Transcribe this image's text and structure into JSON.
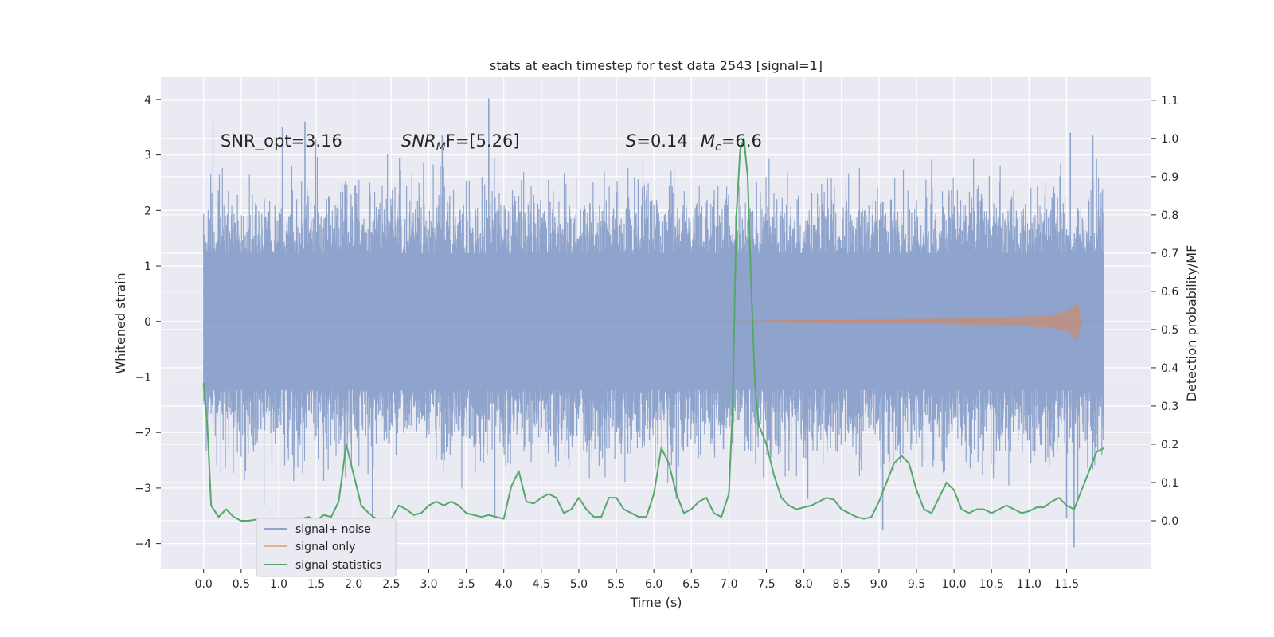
{
  "chart_data": {
    "type": "line",
    "title": "stats at each timestep for test data 2543 [signal=1]",
    "xlabel": "Time (s)",
    "ylabel": "Whitened strain",
    "y2label": "Detection probability/MF",
    "xlim": [
      -0.57,
      12.63
    ],
    "ylim": [
      -4.45,
      4.4
    ],
    "y2lim": [
      -0.125,
      1.16
    ],
    "x_ticks": [
      "0.0",
      "0.5",
      "1.0",
      "1.5",
      "2.0",
      "2.5",
      "3.0",
      "3.5",
      "4.0",
      "4.5",
      "5.0",
      "5.5",
      "6.0",
      "6.5",
      "7.0",
      "7.5",
      "8.0",
      "8.5",
      "9.0",
      "9.5",
      "10.0",
      "10.5",
      "11.0",
      "11.5"
    ],
    "y_ticks": [
      "4",
      "3",
      "2",
      "1",
      "0",
      "−1",
      "−2",
      "−3",
      "−4"
    ],
    "y2_ticks": [
      "1.1",
      "1.0",
      "0.9",
      "0.8",
      "0.7",
      "0.6",
      "0.5",
      "0.4",
      "0.3",
      "0.2",
      "0.1",
      "0.0"
    ],
    "grid": true,
    "legend_position": "lower-left",
    "annotations": {
      "snr_opt": "SNR_opt=3.16",
      "snr_mf_base": "SNR",
      "snr_mf_sub": "M",
      "snr_mf_rest": "F=[5.26]",
      "s_var": "S",
      "s_val": "=0.14",
      "mc_base": "M",
      "mc_sub": "c",
      "mc_val": "=6.6"
    },
    "series": [
      {
        "name": "signal+ noise",
        "color": "#8fa4cc",
        "description": "whitened strain noise band",
        "x_range": [
          0.0,
          12.0
        ],
        "typical_range": [
          -1.9,
          1.9
        ],
        "max": 4.02,
        "min": -4.07
      },
      {
        "name": "signal only",
        "color": "#dd8452",
        "x": [
          0.0,
          6.0,
          7.0,
          8.0,
          9.0,
          10.0,
          10.5,
          11.0,
          11.3,
          11.5,
          11.6,
          11.65,
          11.7
        ],
        "envelope": [
          0.0,
          0.005,
          0.01,
          0.03,
          0.04,
          0.05,
          0.07,
          0.09,
          0.12,
          0.18,
          0.28,
          0.35,
          0.0
        ]
      },
      {
        "name": "signal statistics",
        "color": "#55a868",
        "x": [
          0.0,
          0.05,
          0.1,
          0.2,
          0.3,
          0.4,
          0.5,
          0.6,
          0.7,
          0.8,
          0.9,
          1.0,
          1.1,
          1.2,
          1.3,
          1.4,
          1.5,
          1.6,
          1.7,
          1.8,
          1.9,
          2.0,
          2.1,
          2.2,
          2.3,
          2.4,
          2.5,
          2.6,
          2.7,
          2.8,
          2.9,
          3.0,
          3.1,
          3.2,
          3.3,
          3.4,
          3.5,
          3.6,
          3.7,
          3.8,
          3.9,
          4.0,
          4.1,
          4.2,
          4.3,
          4.4,
          4.5,
          4.6,
          4.7,
          4.8,
          4.9,
          5.0,
          5.1,
          5.2,
          5.3,
          5.4,
          5.5,
          5.6,
          5.7,
          5.8,
          5.9,
          6.0,
          6.1,
          6.2,
          6.3,
          6.4,
          6.5,
          6.6,
          6.7,
          6.8,
          6.9,
          7.0,
          7.05,
          7.1,
          7.15,
          7.2,
          7.25,
          7.3,
          7.35,
          7.4,
          7.5,
          7.6,
          7.7,
          7.8,
          7.9,
          8.0,
          8.1,
          8.2,
          8.3,
          8.4,
          8.5,
          8.6,
          8.7,
          8.8,
          8.9,
          9.0,
          9.1,
          9.2,
          9.3,
          9.4,
          9.5,
          9.6,
          9.7,
          9.8,
          9.9,
          10.0,
          10.1,
          10.2,
          10.3,
          10.4,
          10.5,
          10.6,
          10.7,
          10.8,
          10.9,
          11.0,
          11.1,
          11.2,
          11.3,
          11.4,
          11.5,
          11.6,
          11.7,
          11.8,
          11.9,
          12.0
        ],
        "y": [
          0.36,
          0.25,
          0.04,
          0.01,
          0.03,
          0.01,
          0.0,
          0.0,
          0.003,
          0.0,
          0.0,
          0.002,
          0.0,
          0.0,
          0.005,
          0.01,
          0.0,
          0.015,
          0.01,
          0.05,
          0.2,
          0.12,
          0.04,
          0.02,
          0.005,
          0.0,
          0.005,
          0.04,
          0.03,
          0.015,
          0.02,
          0.04,
          0.05,
          0.04,
          0.05,
          0.04,
          0.02,
          0.015,
          0.01,
          0.015,
          0.01,
          0.005,
          0.09,
          0.13,
          0.05,
          0.045,
          0.06,
          0.07,
          0.06,
          0.02,
          0.03,
          0.06,
          0.03,
          0.01,
          0.01,
          0.06,
          0.06,
          0.03,
          0.02,
          0.01,
          0.01,
          0.07,
          0.19,
          0.15,
          0.07,
          0.02,
          0.03,
          0.05,
          0.06,
          0.02,
          0.01,
          0.07,
          0.3,
          0.8,
          0.97,
          1.0,
          0.9,
          0.6,
          0.35,
          0.25,
          0.2,
          0.12,
          0.06,
          0.04,
          0.03,
          0.035,
          0.04,
          0.05,
          0.06,
          0.055,
          0.03,
          0.02,
          0.01,
          0.005,
          0.01,
          0.05,
          0.1,
          0.15,
          0.17,
          0.15,
          0.08,
          0.03,
          0.02,
          0.06,
          0.1,
          0.08,
          0.03,
          0.02,
          0.03,
          0.03,
          0.02,
          0.03,
          0.04,
          0.03,
          0.02,
          0.025,
          0.035,
          0.035,
          0.05,
          0.06,
          0.04,
          0.03,
          0.08,
          0.13,
          0.18,
          0.19
        ]
      }
    ]
  }
}
